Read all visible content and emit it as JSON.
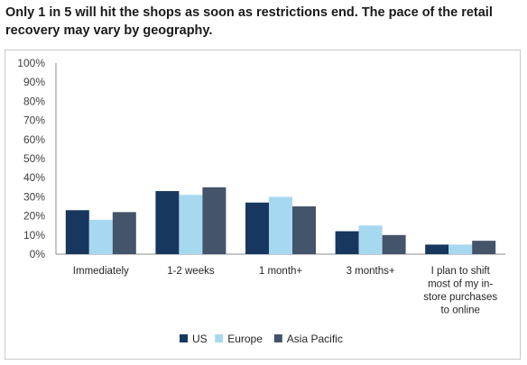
{
  "headline": {
    "line1": "Only 1 in 5 will hit the shops as soon as restrictions end. The pace of the retail",
    "line2": "recovery may vary by geography."
  },
  "chart_data": {
    "type": "bar",
    "categories": [
      [
        "Immediately"
      ],
      [
        "1-2 weeks"
      ],
      [
        "1 month+"
      ],
      [
        "3 months+"
      ],
      [
        "I plan to shift",
        "most of my in-",
        "store purchases",
        "to online"
      ]
    ],
    "series": [
      {
        "name": "US",
        "color": "#17375e",
        "values": [
          23,
          33,
          27,
          12,
          5
        ]
      },
      {
        "name": "Europe",
        "color": "#a6d9f0",
        "values": [
          18,
          31,
          30,
          15,
          5
        ]
      },
      {
        "name": "Asia Pacific",
        "color": "#44546a",
        "values": [
          22,
          35,
          25,
          10,
          7
        ]
      }
    ],
    "yticks": [
      "0%",
      "10%",
      "20%",
      "30%",
      "40%",
      "50%",
      "60%",
      "70%",
      "80%",
      "90%",
      "100%"
    ],
    "ylim": [
      0,
      100
    ],
    "grid": false,
    "legend_position": "bottom"
  }
}
